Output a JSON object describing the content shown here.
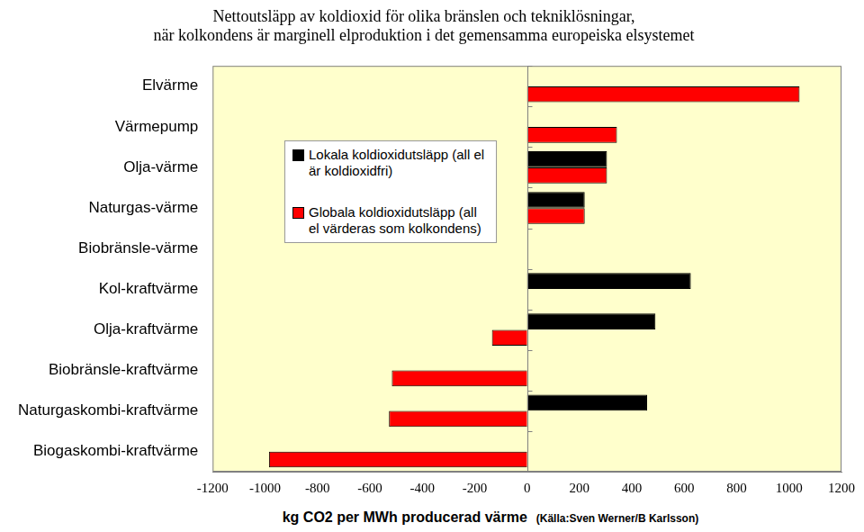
{
  "chart_data": {
    "type": "bar",
    "orientation": "horizontal",
    "title": [
      "Nettoutsläpp av koldioxid för olika bränslen och tekniklösningar,",
      "när kolkondens är marginell elproduktion i det gemensamma europeiska elsystemet"
    ],
    "x_label": "kg CO2 per MWh producerad värme",
    "annotation": "(Källa:Sven Werner/B Karlsson)",
    "categories": [
      "Elvärme",
      "Värmepump",
      "Olja-värme",
      "Naturgas-värme",
      "Biobränsle-värme",
      "Kol-kraftvärme",
      "Olja-kraftvärme",
      "Biobränsle-kraftvärme",
      "Naturgaskombi-kraftvärme",
      "Biogaskombi-kraftvärme"
    ],
    "series": [
      {
        "name": "Lokala koldioxidutsläpp (all el är koldioxidfri)",
        "color": "#000000",
        "values": [
          0,
          0,
          305,
          220,
          0,
          625,
          490,
          0,
          458,
          0
        ]
      },
      {
        "name": "Globala koldioxidutsläpp (all el värderas som kolkondens)",
        "color": "#ff0000",
        "values": [
          1040,
          343,
          305,
          220,
          0,
          0,
          -134,
          -516,
          -527,
          -985
        ]
      }
    ],
    "xlim": [
      -1200,
      1200
    ],
    "xticks": [
      -1200,
      -1000,
      -800,
      -600,
      -400,
      -200,
      0,
      200,
      400,
      600,
      800,
      1000,
      1200
    ],
    "grid": false,
    "legend": "upper left"
  }
}
